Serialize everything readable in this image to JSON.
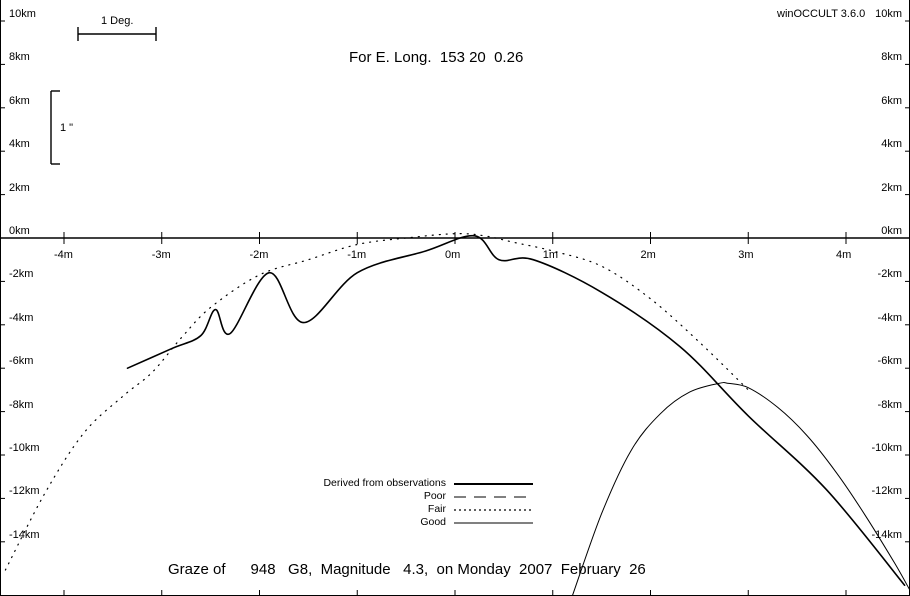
{
  "app": {
    "name": "winOCCULT 3.6.0"
  },
  "header": {
    "title": "For E. Long.  153 20  0.26"
  },
  "footer": {
    "title": "Graze of      948   G8,  Magnitude   4.3,  on Monday  2007  February  26"
  },
  "scales": {
    "degree_label": "1 Deg.",
    "arcsec_label": "1 \""
  },
  "legend": [
    {
      "label": "Derived from observations",
      "style": "thick"
    },
    {
      "label": "Poor",
      "style": "dashed"
    },
    {
      "label": "Fair",
      "style": "dotted"
    },
    {
      "label": "Good",
      "style": "thin"
    }
  ],
  "chart_data": {
    "type": "line",
    "title": "For E. Long.  153 20  0.26",
    "xlabel": "",
    "ylabel": "",
    "x_unit": "min",
    "y_unit": "km",
    "xlim": [
      -4.65,
      4.65
    ],
    "ylim": [
      -16.5,
      10.5
    ],
    "x_ticks": [
      -4,
      -3,
      -2,
      -1,
      0,
      1,
      2,
      3,
      4
    ],
    "x_tick_labels": [
      "-4m",
      "-3m",
      "-2m",
      "-1m",
      "0m",
      "1m",
      "2m",
      "3m",
      "4m"
    ],
    "y_ticks": [
      10,
      8,
      6,
      4,
      2,
      0,
      -2,
      -4,
      -6,
      -8,
      -10,
      -12,
      -14
    ],
    "y_tick_labels": [
      "10km",
      "8km",
      "6km",
      "4km",
      "2km",
      "0km",
      "-2km",
      "-4km",
      "-6km",
      "-8km",
      "-10km",
      "-12km",
      "-14km"
    ],
    "grid": false,
    "series": [
      {
        "name": "Derived from observations",
        "style": "thick",
        "x": [
          -3.35,
          -2.9,
          -2.6,
          -2.45,
          -2.3,
          -1.9,
          -1.55,
          -1.0,
          -0.3,
          0.2,
          0.45,
          0.8,
          1.5,
          2.3,
          3.0,
          3.8,
          4.6
        ],
        "y": [
          -6.0,
          -5.1,
          -4.5,
          -3.3,
          -4.4,
          -1.6,
          -3.9,
          -1.6,
          -0.6,
          0.1,
          -1.0,
          -1.0,
          -2.5,
          -5.0,
          -8.2,
          -11.6,
          -16.0
        ]
      },
      {
        "name": "Fair",
        "style": "dotted",
        "x": [
          -4.6,
          -4.2,
          -3.8,
          -3.4,
          -3.1,
          -2.8,
          -2.5,
          -2.0,
          -1.5,
          -1.0,
          -0.5,
          0.0,
          0.3,
          0.6,
          1.0,
          1.5,
          2.0,
          2.5,
          3.0
        ],
        "y": [
          -15.3,
          -11.8,
          -9.0,
          -7.3,
          -6.2,
          -4.6,
          -3.2,
          -1.7,
          -1.0,
          -0.3,
          0.0,
          0.2,
          0.1,
          -0.2,
          -0.6,
          -1.3,
          -2.8,
          -4.8,
          -7.0
        ]
      },
      {
        "name": "Good",
        "style": "thin",
        "x": [
          1.2,
          1.5,
          1.8,
          2.1,
          2.4,
          2.7,
          2.8,
          3.0,
          3.3,
          3.6,
          3.9,
          4.2,
          4.5,
          4.65
        ],
        "y": [
          -16.5,
          -12.7,
          -9.8,
          -8.1,
          -7.1,
          -6.7,
          -6.7,
          -6.9,
          -7.8,
          -9.1,
          -10.8,
          -12.8,
          -15.0,
          -16.2
        ]
      }
    ]
  }
}
